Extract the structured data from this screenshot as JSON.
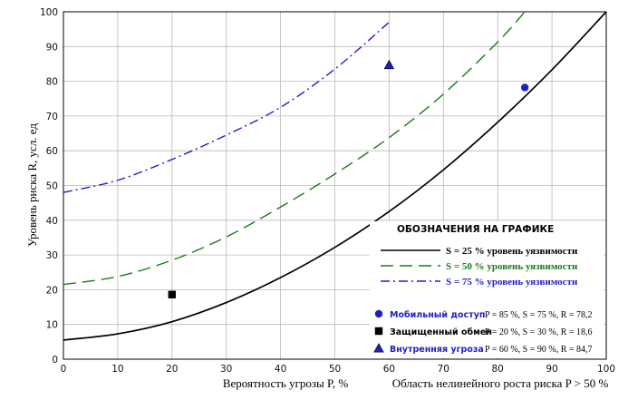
{
  "chart_data": {
    "type": "line",
    "xlabel": "Вероятность угрозы P, %",
    "xlabel_note": "Область нелинейного роста риска P > 50 %",
    "ylabel": "Уровень риска R, усл. ед",
    "xlim": [
      0,
      100
    ],
    "ylim": [
      0,
      100
    ],
    "x_ticks": [
      "0",
      "10",
      "20",
      "30",
      "40",
      "50",
      "60",
      "70",
      "80",
      "90",
      "100"
    ],
    "y_ticks": [
      "0",
      "10",
      "20",
      "30",
      "40",
      "50",
      "60",
      "70",
      "80",
      "90",
      "100"
    ],
    "grid": true,
    "legend_title": "ОБОЗНАЧЕНИЯ НА ГРАФИКЕ",
    "legend_position": "lower-right",
    "series": [
      {
        "name": "S = 25 % уровень уязвимости",
        "color": "#000000",
        "style": "solid",
        "x": [
          0,
          10,
          20,
          30,
          40,
          50,
          60,
          70,
          80,
          90,
          100
        ],
        "y": [
          5.5,
          7.3,
          10.8,
          16.3,
          23.5,
          32.2,
          42.5,
          54.5,
          68.2,
          83.3,
          100
        ]
      },
      {
        "name": "S = 50 % уровень уязвимости",
        "color": "#1a7a1a",
        "style": "dashed",
        "x": [
          0,
          10,
          20,
          30,
          40,
          50,
          60,
          70,
          80,
          85
        ],
        "y": [
          21.5,
          23.8,
          28.5,
          35.2,
          43.8,
          53.3,
          63.8,
          76.3,
          91.3,
          100
        ]
      },
      {
        "name": "S = 75 % уровень уязвимости",
        "color": "#1f1fc8",
        "style": "dashdot",
        "x": [
          0,
          10,
          20,
          30,
          40,
          50,
          60
        ],
        "y": [
          48,
          51.5,
          57.5,
          64.5,
          72.5,
          83.5,
          97
        ]
      }
    ],
    "points": [
      {
        "name": "Мобильный доступ",
        "params": "P = 85 %, S = 75 %, R = 78,2",
        "marker": "circle",
        "color": "#1f1fc8",
        "x": 85,
        "y": 78.2
      },
      {
        "name": "Защищенный обмен",
        "params": "P = 20 %, S = 30 %, R = 18,6",
        "marker": "square",
        "color": "#000000",
        "x": 20,
        "y": 18.6
      },
      {
        "name": "Внутренняя угроза",
        "params": "P = 60 %, S = 90 %, R = 84,7",
        "marker": "triangle",
        "color": "#1f1fc8",
        "x": 60,
        "y": 84.7
      }
    ]
  }
}
